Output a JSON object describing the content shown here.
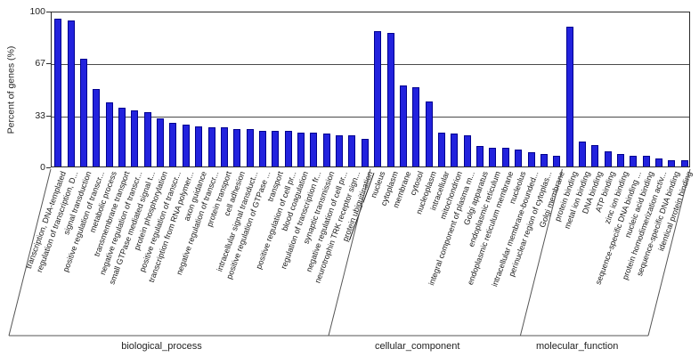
{
  "chart_data": {
    "type": "bar",
    "title": "",
    "ylabel": "Percent of genes (%)",
    "xlabel": "",
    "ylim": [
      0,
      100
    ],
    "yticks": [
      0,
      33,
      67,
      100
    ],
    "grid": "horizontal",
    "bar_color": "#2222dd",
    "groups": [
      {
        "name": "biological_process",
        "items": [
          {
            "label": "transcription, DNA-templated",
            "value": 95
          },
          {
            "label": "regulation of transcription, D...",
            "value": 94
          },
          {
            "label": "signal transduction",
            "value": 69
          },
          {
            "label": "positive regulation of transcr...",
            "value": 50
          },
          {
            "label": "metabolic process",
            "value": 41
          },
          {
            "label": "transmembrane transport",
            "value": 38
          },
          {
            "label": "negative regulation of transcr...",
            "value": 36
          },
          {
            "label": "small GTPase mediated signal t...",
            "value": 35
          },
          {
            "label": "protein phosphorylation",
            "value": 31
          },
          {
            "label": "positive regulation of transcr...",
            "value": 28
          },
          {
            "label": "transcription from RNA polymer...",
            "value": 27
          },
          {
            "label": "axon guidance",
            "value": 26
          },
          {
            "label": "negative regulation of transcr...",
            "value": 25
          },
          {
            "label": "protein transport",
            "value": 25
          },
          {
            "label": "cell adhesion",
            "value": 24
          },
          {
            "label": "intracellular signal transduct...",
            "value": 24
          },
          {
            "label": "positive regulation of GTPase ...",
            "value": 23
          },
          {
            "label": "transport",
            "value": 23
          },
          {
            "label": "positive regulation of cell pr...",
            "value": 23
          },
          {
            "label": "blood coagulation",
            "value": 22
          },
          {
            "label": "regulation of transcription fr...",
            "value": 22
          },
          {
            "label": "synaptic transmission",
            "value": 21
          },
          {
            "label": "negative regulation of cell pr...",
            "value": 20
          },
          {
            "label": "neurotrophin TRK receptor sign...",
            "value": 20
          },
          {
            "label": "protein ubiquitination",
            "value": 18,
            "underline": true
          }
        ]
      },
      {
        "name": "cellular_component",
        "items": [
          {
            "label": "nucleus",
            "value": 87
          },
          {
            "label": "cytoplasm",
            "value": 86
          },
          {
            "label": "membrane",
            "value": 52
          },
          {
            "label": "cytosol",
            "value": 51
          },
          {
            "label": "nucleoplasm",
            "value": 42
          },
          {
            "label": "intracellular",
            "value": 22
          },
          {
            "label": "mitochondrion",
            "value": 21
          },
          {
            "label": "integral component of plasma m...",
            "value": 20
          },
          {
            "label": "Golgi apparatus",
            "value": 13
          },
          {
            "label": "endoplasmic reticulum",
            "value": 12
          },
          {
            "label": "endoplasmic reticulum membrane",
            "value": 12
          },
          {
            "label": "nucleolus",
            "value": 11
          },
          {
            "label": "intracellular membrane-bounded...",
            "value": 9
          },
          {
            "label": "perinuclear region of cytoplas...",
            "value": 8
          },
          {
            "label": "Golgi membrane",
            "value": 7
          }
        ]
      },
      {
        "name": "molecular_function",
        "items": [
          {
            "label": "protein binding",
            "value": 90
          },
          {
            "label": "metal ion binding",
            "value": 16
          },
          {
            "label": "DNA binding",
            "value": 14
          },
          {
            "label": "ATP binding",
            "value": 10
          },
          {
            "label": "zinc ion binding",
            "value": 8
          },
          {
            "label": "sequence-specific DNA binding ...",
            "value": 7
          },
          {
            "label": "nucleic acid binding",
            "value": 7
          },
          {
            "label": "protein homodimerization activ...",
            "value": 5
          },
          {
            "label": "sequence-specific DNA binding",
            "value": 4
          },
          {
            "label": "identical protein binding",
            "value": 4
          }
        ]
      }
    ]
  }
}
